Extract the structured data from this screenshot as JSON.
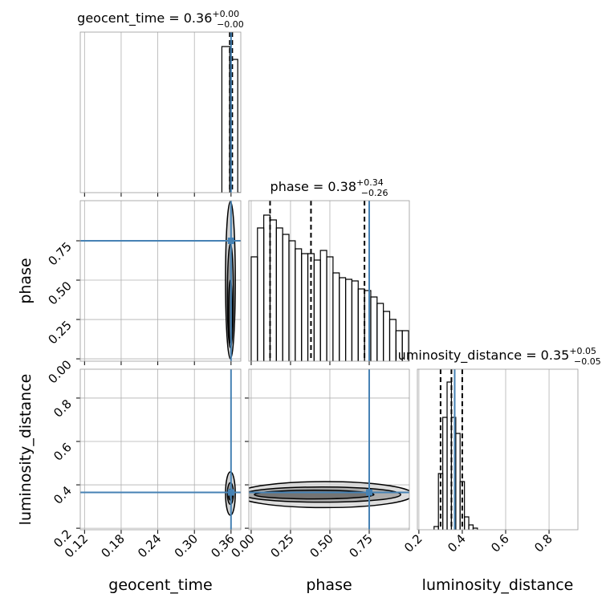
{
  "chart_data": {
    "type": "corner",
    "truth_color": "#4682b4",
    "line_color": "#000000",
    "grid": true,
    "parameters": [
      {
        "label": "geocent_time",
        "title": {
          "text": "geocent_time = 0.36",
          "plus": "+0.00",
          "minus": "−0.00"
        },
        "lim": [
          0.113,
          0.376
        ],
        "ticks": [
          0.12,
          0.18,
          0.24,
          {
            "value": 0.3,
            "label": "0.30"
          },
          0.36
        ],
        "truth": 0.36,
        "quantiles": [
          0.358,
          0.36,
          0.362
        ],
        "bins": [
          0.345,
          0.358,
          0.371,
          0.384
        ],
        "counts": [
          0.91,
          0.83,
          0
        ],
        "count_lim": [
          0,
          1
        ]
      },
      {
        "label": "phase",
        "title": {
          "text": "phase = 0.38",
          "plus": "+0.34",
          "minus": "−0.26"
        },
        "lim": [
          -0.015,
          1.005
        ],
        "ticks": [
          {
            "value": 0,
            "label": "0.00"
          },
          0.25,
          {
            "value": 0.5,
            "label": "0.50"
          },
          0.75
        ],
        "truth": 0.75,
        "quantiles": [
          0.12,
          0.38,
          0.72
        ],
        "bins": [
          0,
          0.04,
          0.08,
          0.12,
          0.16,
          0.2,
          0.24,
          0.28,
          0.32,
          0.36,
          0.4,
          0.44,
          0.48,
          0.52,
          0.56,
          0.6,
          0.64,
          0.68,
          0.72,
          0.76,
          0.8,
          0.84,
          0.88,
          0.92,
          0.96,
          1.0
        ],
        "counts": [
          0.65,
          0.83,
          0.91,
          0.88,
          0.83,
          0.79,
          0.75,
          0.7,
          0.67,
          0.67,
          0.63,
          0.69,
          0.65,
          0.55,
          0.52,
          0.51,
          0.5,
          0.45,
          0.44,
          0.4,
          0.36,
          0.31,
          0.26,
          0.19,
          0.19
        ],
        "count_lim": [
          0,
          1
        ]
      },
      {
        "label": "luminosity_distance",
        "title": {
          "text": "luminosity_distance = 0.35",
          "plus": "+0.05",
          "minus": "−0.05"
        },
        "lim": [
          0.193,
          0.933
        ],
        "ticks": [
          0.2,
          0.4,
          0.6,
          0.8
        ],
        "truth": 0.365,
        "quantiles": [
          0.3,
          0.35,
          0.4
        ],
        "bins": [
          0.27,
          0.29,
          0.31,
          0.33,
          0.35,
          0.37,
          0.39,
          0.41,
          0.43,
          0.45,
          0.47
        ],
        "counts": [
          0.02,
          0.35,
          0.7,
          0.92,
          0.7,
          0.6,
          0.3,
          0.08,
          0.03,
          0.01
        ],
        "count_lim": [
          0,
          1
        ]
      }
    ],
    "pairs": [
      {
        "x": 0,
        "y": 1,
        "contours": [
          {
            "center": [
              0.359,
              0.5
            ],
            "rx": 0.008,
            "ry": 0.5,
            "color": "#c8c8c8"
          },
          {
            "center": [
              0.359,
              0.4
            ],
            "rx": 0.005,
            "ry": 0.33,
            "color": "#8a8a8a"
          },
          {
            "center": [
              0.359,
              0.3
            ],
            "rx": 0.003,
            "ry": 0.2,
            "color": "#444444"
          }
        ]
      },
      {
        "x": 0,
        "y": 2,
        "contours": [
          {
            "center": [
              0.359,
              0.36
            ],
            "rx": 0.008,
            "ry": 0.1,
            "color": "#c8c8c8"
          },
          {
            "center": [
              0.359,
              0.36
            ],
            "rx": 0.005,
            "ry": 0.05,
            "color": "#8a8a8a"
          },
          {
            "center": [
              0.359,
              0.355
            ],
            "rx": 0.003,
            "ry": 0.025,
            "color": "#444444"
          }
        ]
      },
      {
        "x": 1,
        "y": 2,
        "contours": [
          {
            "center": [
              0.47,
              0.355
            ],
            "rx": 0.56,
            "ry": 0.06,
            "color": "#d4d4d4"
          },
          {
            "center": [
              0.45,
              0.355
            ],
            "rx": 0.5,
            "ry": 0.035,
            "color": "#a0a0a0"
          },
          {
            "center": [
              0.4,
              0.355
            ],
            "rx": 0.38,
            "ry": 0.02,
            "color": "#666666"
          }
        ]
      }
    ]
  }
}
